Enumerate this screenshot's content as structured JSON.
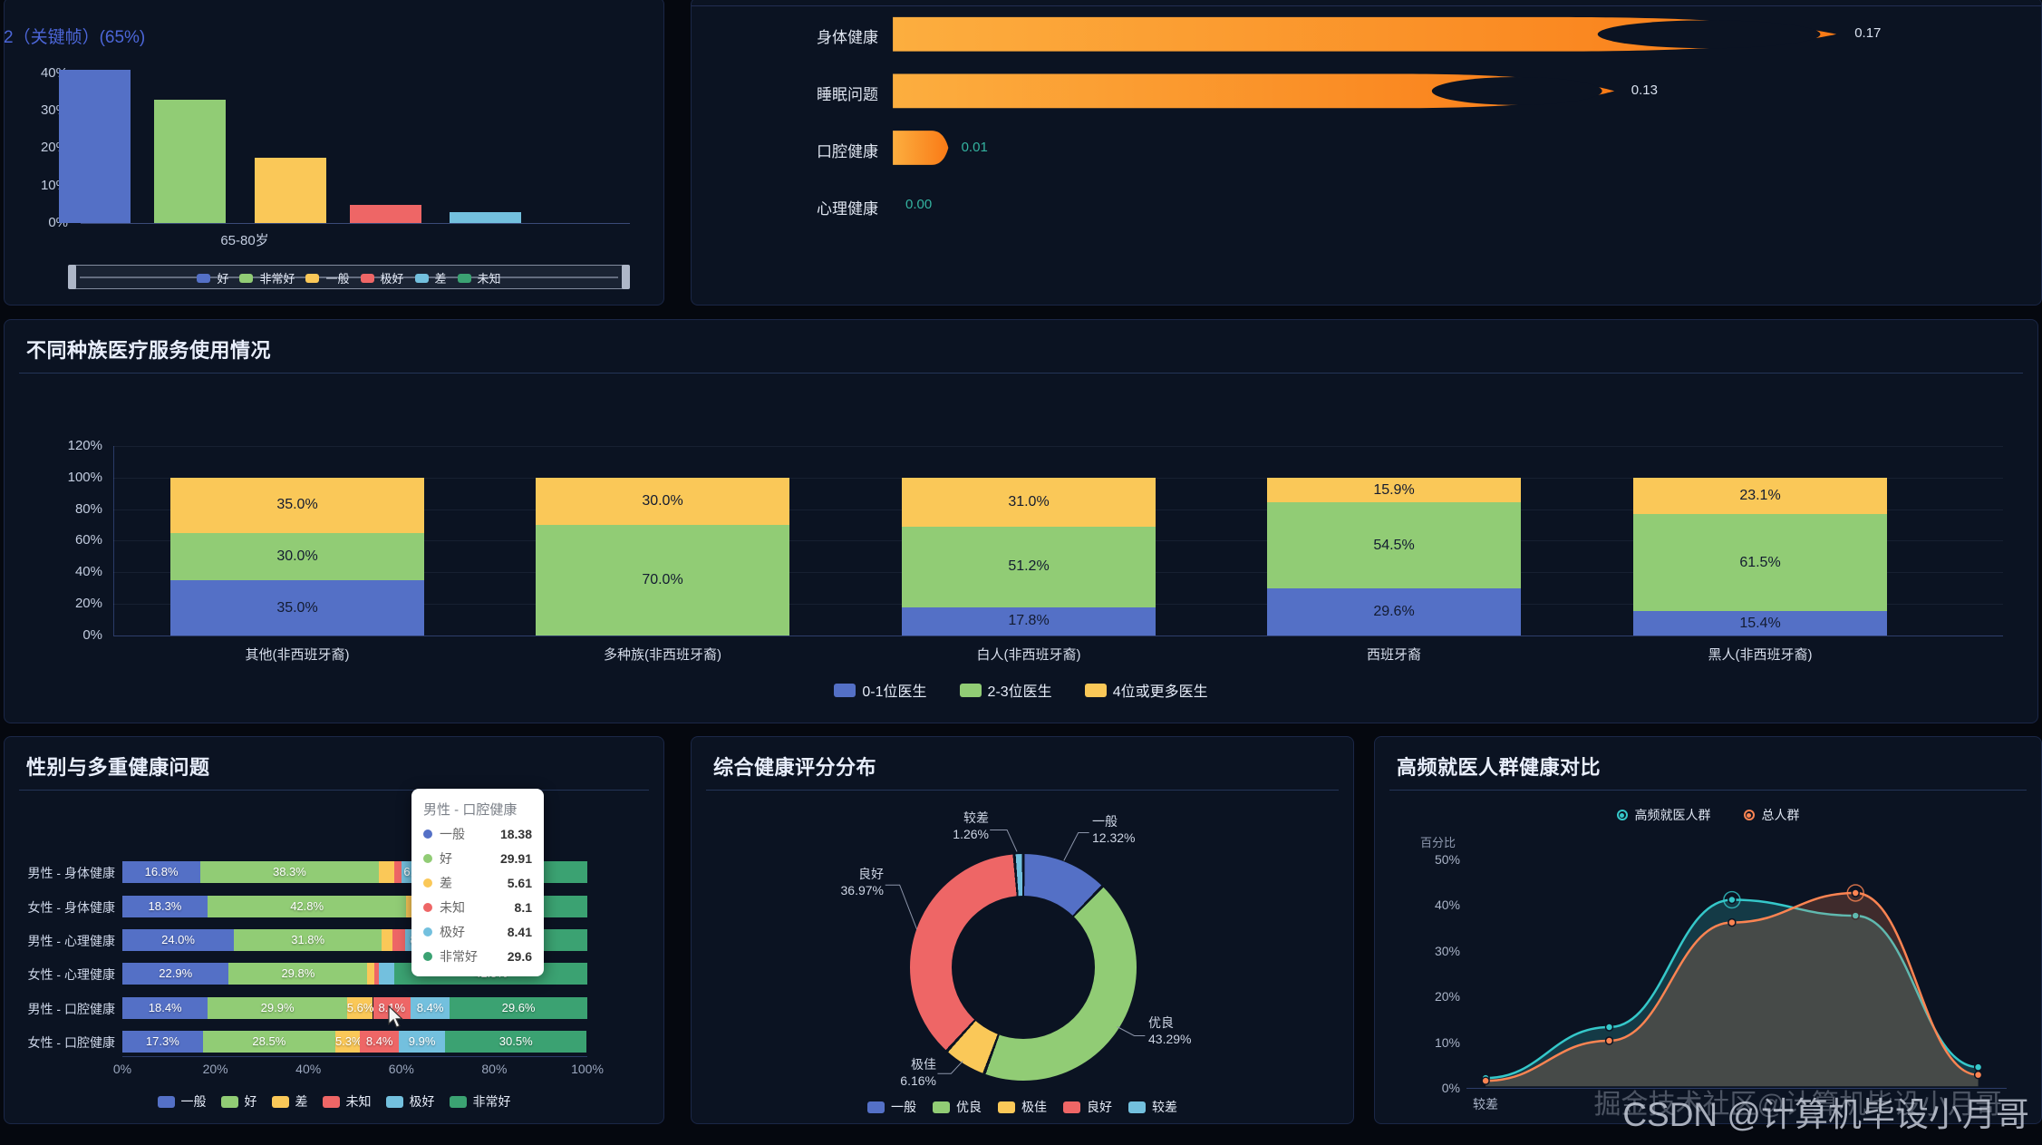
{
  "page": {
    "background": "#05080f",
    "panel_background": "#0b1322",
    "panel_border": "#1b2747",
    "title_color": "#e8eefb",
    "axis_text_color": "#c3cde0",
    "muted_text_color": "#9aa6bd",
    "grid_line_color": "rgba(170,190,230,0.08)"
  },
  "overlay": {
    "frame_label": "2（关键帧）(65%)"
  },
  "watermark": {
    "back": "掘金技术社区@计算机毕设小月哥",
    "front": "CSDN @计算机毕设小月哥"
  },
  "chart_data": [
    {
      "id": "age_health_bar",
      "type": "bar",
      "title": "",
      "categories": [
        "65-80岁"
      ],
      "series": [
        {
          "name": "好",
          "color": "#5470c6",
          "values": [
            41
          ]
        },
        {
          "name": "非常好",
          "color": "#91cc75",
          "values": [
            33
          ]
        },
        {
          "name": "一般",
          "color": "#fac858",
          "values": [
            17.5
          ]
        },
        {
          "name": "极好",
          "color": "#ee6666",
          "values": [
            4.8
          ]
        },
        {
          "name": "差",
          "color": "#73c0de",
          "values": [
            2.8
          ]
        },
        {
          "name": "未知",
          "color": "#3ba272",
          "values": [
            0
          ]
        }
      ],
      "yticks": [
        "0%",
        "10%",
        "20%",
        "30%",
        "40%"
      ],
      "ylim": [
        0,
        40
      ]
    },
    {
      "id": "health_issue_avg",
      "type": "bar",
      "orientation": "horizontal",
      "title": "",
      "categories": [
        "身体健康",
        "睡眠问题",
        "口腔健康",
        "心理健康"
      ],
      "values": [
        0.17,
        0.13,
        0.01,
        0.0
      ],
      "value_labels": [
        "0.17",
        "0.13",
        "0.01",
        "0.00"
      ],
      "value_label_colors": [
        "#d8e0ee",
        "#d8e0ee",
        "#34b3a0",
        "#34b3a0"
      ],
      "xmax": 0.2,
      "bar_colors": [
        "#fcae3f",
        "#f97a16"
      ]
    },
    {
      "id": "ethnicity_usage",
      "type": "bar",
      "stacked": true,
      "title": "不同种族医疗服务使用情况",
      "categories": [
        "其他(非西班牙裔)",
        "多种族(非西班牙裔)",
        "白人(非西班牙裔)",
        "西班牙裔",
        "黑人(非西班牙裔)"
      ],
      "series": [
        {
          "name": "0-1位医生",
          "color": "#5470c6",
          "values": [
            35.0,
            0.0,
            17.8,
            29.6,
            15.4
          ]
        },
        {
          "name": "2-3位医生",
          "color": "#91cc75",
          "values": [
            30.0,
            70.0,
            51.2,
            54.5,
            61.5
          ]
        },
        {
          "name": "4位或更多医生",
          "color": "#fac858",
          "values": [
            35.0,
            30.0,
            31.0,
            15.9,
            23.1
          ]
        }
      ],
      "yticks": [
        "0%",
        "20%",
        "40%",
        "60%",
        "80%",
        "100%",
        "120%"
      ],
      "ylim": [
        0,
        120
      ]
    },
    {
      "id": "gender_health",
      "type": "bar",
      "stacked": true,
      "orientation": "horizontal",
      "title": "性别与多重健康问题",
      "categories": [
        "男性 - 身体健康",
        "女性 - 身体健康",
        "男性 - 心理健康",
        "女性 - 心理健康",
        "男性 - 口腔健康",
        "女性 - 口腔健康"
      ],
      "series": [
        {
          "name": "一般",
          "color": "#5470c6",
          "values": [
            16.8,
            18.3,
            24.0,
            22.9,
            18.4,
            17.3
          ]
        },
        {
          "name": "好",
          "color": "#91cc75",
          "values": [
            38.3,
            42.8,
            31.8,
            29.8,
            29.9,
            28.5
          ]
        },
        {
          "name": "差",
          "color": "#fac858",
          "values": [
            3.4,
            2.5,
            2.2,
            1.5,
            5.6,
            5.3
          ]
        },
        {
          "name": "未知",
          "color": "#ee6666",
          "values": [
            1.6,
            1.2,
            2.8,
            1.0,
            8.1,
            8.4
          ]
        },
        {
          "name": "极好",
          "color": "#73c0de",
          "values": [
            6.6,
            5.2,
            8.0,
            3.3,
            8.4,
            9.9
          ]
        },
        {
          "name": "非常好",
          "color": "#3ba272",
          "values": [
            33.3,
            30.0,
            31.2,
            41.5,
            29.6,
            30.5
          ]
        }
      ],
      "xticks": [
        "0%",
        "20%",
        "40%",
        "60%",
        "80%",
        "100%"
      ],
      "xlim": [
        0,
        100
      ],
      "label_min_value": 5,
      "tooltip": {
        "title": "男性 - 口腔健康",
        "rows": [
          {
            "name": "一般",
            "color": "#5470c6",
            "value": "18.38"
          },
          {
            "name": "好",
            "color": "#91cc75",
            "value": "29.91"
          },
          {
            "name": "差",
            "color": "#fac858",
            "value": "5.61"
          },
          {
            "name": "未知",
            "color": "#ee6666",
            "value": "8.1"
          },
          {
            "name": "极好",
            "color": "#73c0de",
            "value": "8.41"
          },
          {
            "name": "非常好",
            "color": "#3ba272",
            "value": "29.6"
          }
        ]
      }
    },
    {
      "id": "health_score_pie",
      "type": "pie",
      "title": "综合健康评分分布",
      "slices": [
        {
          "name": "一般",
          "color": "#5470c6",
          "value": 12.32
        },
        {
          "name": "优良",
          "color": "#91cc75",
          "value": 43.29
        },
        {
          "name": "极佳",
          "color": "#fac858",
          "value": 6.16
        },
        {
          "name": "良好",
          "color": "#ee6666",
          "value": 36.97
        },
        {
          "name": "较差",
          "color": "#73c0de",
          "value": 1.26
        }
      ]
    },
    {
      "id": "frequent_patients_line",
      "type": "line",
      "title": "高频就医人群健康对比",
      "ylabel": "百分比",
      "yticks": [
        "0%",
        "10%",
        "20%",
        "30%",
        "40%",
        "50%"
      ],
      "ylim": [
        0,
        50
      ],
      "categories": [
        "较差",
        "",
        "",
        "",
        ""
      ],
      "series": [
        {
          "name": "高频就医人群",
          "color": "#35c8ca",
          "values": [
            1.8,
            13,
            41,
            37.5,
            4.2
          ]
        },
        {
          "name": "总人群",
          "color": "#fc8452",
          "values": [
            1.2,
            10,
            36,
            42.5,
            2.5
          ]
        }
      ]
    }
  ]
}
